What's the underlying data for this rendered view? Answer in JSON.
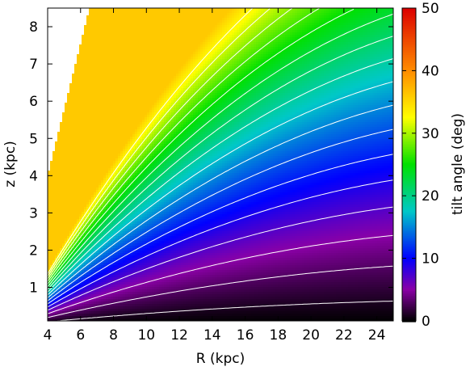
{
  "chart_data": {
    "type": "heatmap",
    "title": "",
    "xlabel": "R (kpc)",
    "ylabel": "z (kpc)",
    "xlim": [
      4,
      25
    ],
    "ylim": [
      0.1,
      8.5
    ],
    "x_ticks": [
      4,
      6,
      8,
      10,
      12,
      14,
      16,
      18,
      20,
      22,
      24
    ],
    "y_ticks": [
      1,
      2,
      3,
      4,
      5,
      6,
      7,
      8
    ],
    "colorbar": {
      "label": "tilt angle (deg)",
      "range": [
        0,
        50
      ],
      "ticks": [
        0,
        10,
        20,
        30,
        40,
        50
      ],
      "colormap": [
        "#000000",
        "#8a00a6",
        "#0000ff",
        "#00c8c8",
        "#00e100",
        "#ffff00",
        "#ff8c00",
        "#dc0000"
      ],
      "colormap_positions": [
        0,
        0.1,
        0.2,
        0.35,
        0.5,
        0.65,
        0.8,
        1.0
      ]
    },
    "masked_region": "white area for z > 1.77*(R-4)+4",
    "contour_levels": [
      1,
      3,
      5,
      7,
      9,
      11,
      13,
      15,
      17,
      19,
      21,
      23,
      25,
      27,
      29,
      31,
      33
    ],
    "contour_color": "#ffffff"
  }
}
